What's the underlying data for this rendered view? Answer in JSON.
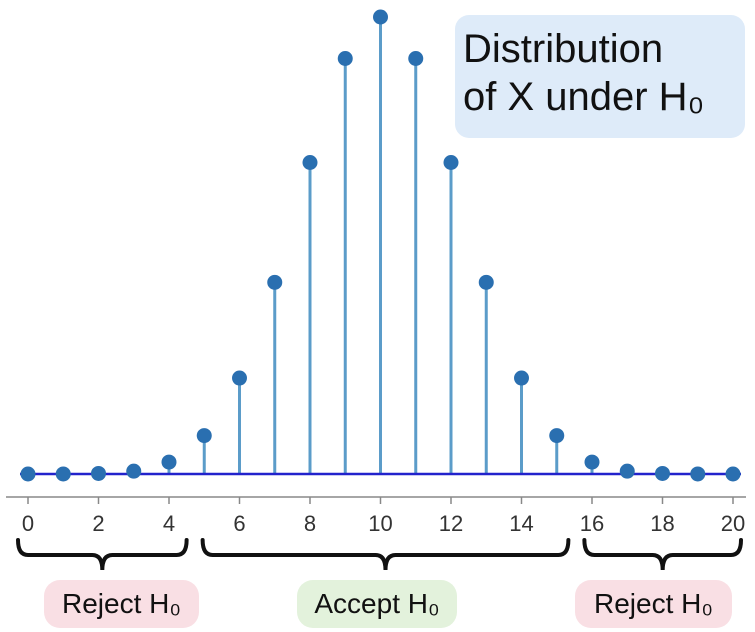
{
  "chart_data": {
    "type": "stem",
    "title_line1": "Distribution",
    "title_line2": "of X under H₀",
    "x": [
      0,
      1,
      2,
      3,
      4,
      5,
      6,
      7,
      8,
      9,
      10,
      11,
      12,
      13,
      14,
      15,
      16,
      17,
      18,
      19,
      20
    ],
    "values": [
      1e-06,
      2e-05,
      0.0002,
      0.0011,
      0.0046,
      0.0148,
      0.037,
      0.0739,
      0.1201,
      0.1602,
      0.1762,
      0.1602,
      0.1201,
      0.0739,
      0.037,
      0.0148,
      0.0046,
      0.0011,
      0.0002,
      2e-05,
      1e-06
    ],
    "xticks": [
      0,
      2,
      4,
      6,
      8,
      10,
      12,
      14,
      16,
      18,
      20
    ],
    "xlim": [
      0,
      20
    ],
    "ylim": [
      0,
      0.1762
    ],
    "grid": false,
    "colors": {
      "stem": "#5b9cc9",
      "marker": "#2a6fb0",
      "baseline": "#2222cc",
      "axis": "#888888"
    },
    "regions": [
      {
        "label": "Reject H₀",
        "from": 0,
        "to": 4
      },
      {
        "label": "Accept H₀",
        "from": 5,
        "to": 15
      },
      {
        "label": "Reject H₀",
        "from": 16,
        "to": 20
      }
    ]
  }
}
